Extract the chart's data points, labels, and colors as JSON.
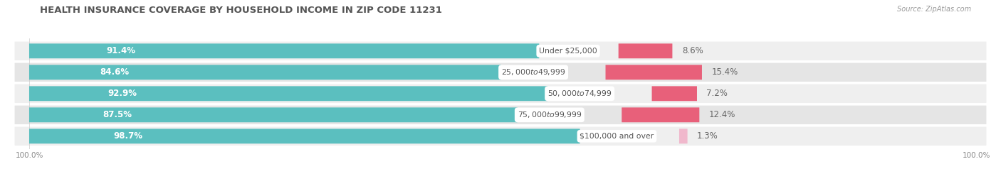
{
  "title": "HEALTH INSURANCE COVERAGE BY HOUSEHOLD INCOME IN ZIP CODE 11231",
  "source": "Source: ZipAtlas.com",
  "categories": [
    "Under $25,000",
    "$25,000 to $49,999",
    "$50,000 to $74,999",
    "$75,000 to $99,999",
    "$100,000 and over"
  ],
  "with_coverage": [
    91.4,
    84.6,
    92.9,
    87.5,
    98.7
  ],
  "without_coverage": [
    8.6,
    15.4,
    7.2,
    12.4,
    1.3
  ],
  "coverage_color": "#5BBFBF",
  "no_coverage_color_top4": "#E8607A",
  "no_coverage_color_last": "#F0A8C0",
  "row_bg_even": "#EFEFEF",
  "row_bg_odd": "#E5E5E5",
  "title_color": "#555555",
  "source_color": "#999999",
  "label_color_white": "#FFFFFF",
  "cat_label_color": "#555555",
  "pct_label_color": "#666666",
  "axis_tick_color": "#888888",
  "title_fontsize": 9.5,
  "label_fontsize": 8.5,
  "cat_fontsize": 7.8,
  "tick_fontsize": 7.5,
  "legend_fontsize": 8,
  "background_color": "#FFFFFF",
  "total_pct_label": "100.0%",
  "no_coverage_colors": [
    "#E8607A",
    "#E8607A",
    "#E8607A",
    "#E8607A",
    "#F0B8CC"
  ]
}
